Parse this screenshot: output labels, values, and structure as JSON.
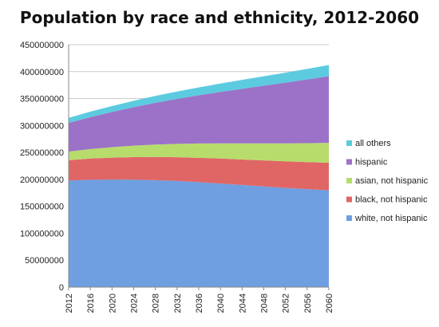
{
  "chart_data": {
    "type": "area",
    "stacked": true,
    "title": "Population by race and ethnicity, 2012-2060",
    "xlabel": "",
    "ylabel": "",
    "x": [
      2012,
      2016,
      2020,
      2024,
      2028,
      2032,
      2036,
      2040,
      2044,
      2048,
      2052,
      2056,
      2060
    ],
    "ylim": [
      0,
      450000000
    ],
    "yticks": [
      "0",
      "50000000",
      "100000000",
      "150000000",
      "200000000",
      "250000000",
      "300000000",
      "350000000",
      "400000000",
      "450000000"
    ],
    "xticks": [
      "2012",
      "2016",
      "2020",
      "2024",
      "2028",
      "2032",
      "2036",
      "2040",
      "2044",
      "2048",
      "2052",
      "2056",
      "2060"
    ],
    "grid": "horizontal",
    "legend_position": "right",
    "series": [
      {
        "name": "white, not hispanic",
        "color": "#6f9fe0",
        "values": [
          197800000,
          199300000,
          199700000,
          199500000,
          198600000,
          197000000,
          194800000,
          192300000,
          189600000,
          186900000,
          184200000,
          181800000,
          179600000
        ]
      },
      {
        "name": "black, not hispanic",
        "color": "#e06666",
        "values": [
          37800000,
          39300000,
          40600000,
          41800000,
          43000000,
          44100000,
          45200000,
          46300000,
          47300000,
          48300000,
          49300000,
          50300000,
          51300000
        ]
      },
      {
        "name": "asian, not hispanic",
        "color": "#b7dc6c",
        "values": [
          15900000,
          17600000,
          19400000,
          21200000,
          23000000,
          24800000,
          26600000,
          28300000,
          30000000,
          31700000,
          33400000,
          35100000,
          36800000
        ]
      },
      {
        "name": "hispanic",
        "color": "#9c72c8",
        "values": [
          53300000,
          59300000,
          65400000,
          71400000,
          77500000,
          83500000,
          89500000,
          95400000,
          101200000,
          107000000,
          112600000,
          118300000,
          123800000
        ]
      },
      {
        "name": "all others",
        "color": "#5ccbe0",
        "values": [
          9300000,
          10100000,
          11000000,
          11900000,
          12800000,
          13700000,
          14600000,
          15500000,
          16500000,
          17500000,
          18500000,
          19600000,
          20700000
        ]
      }
    ],
    "legend_order": [
      "all others",
      "hispanic",
      "asian, not hispanic",
      "black, not hispanic",
      "white, not hispanic"
    ]
  }
}
